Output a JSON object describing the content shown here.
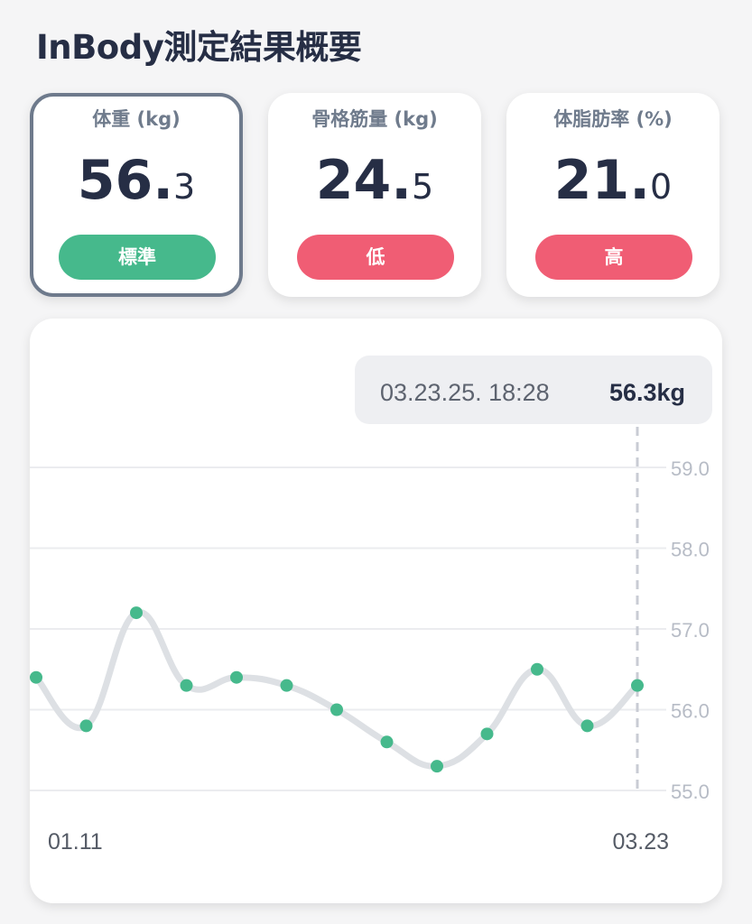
{
  "page": {
    "title": "InBody測定結果概要"
  },
  "cards": [
    {
      "label": "体重 (kg)",
      "int": "56.",
      "dec": "3",
      "status": "標準",
      "status_color": "#46b98c",
      "selected": true
    },
    {
      "label": "骨格筋量 (kg)",
      "int": "24.",
      "dec": "5",
      "status": "低",
      "status_color": "#f05d74",
      "selected": false
    },
    {
      "label": "体脂肪率 (%)",
      "int": "21.",
      "dec": "0",
      "status": "高",
      "status_color": "#f05d74",
      "selected": false
    }
  ],
  "chart": {
    "tooltip": {
      "date": "03.23.25. 18:28",
      "value": "56.3kg"
    }
  },
  "chart_data": {
    "type": "line",
    "ylim": [
      55.0,
      59.0
    ],
    "y_ticks": [
      "59.0",
      "58.0",
      "57.0",
      "56.0",
      "55.0"
    ],
    "x_labels": [
      "01.11",
      "03.23"
    ],
    "values": [
      56.4,
      55.8,
      57.2,
      56.3,
      56.4,
      56.3,
      56.0,
      55.6,
      55.3,
      55.7,
      56.5,
      55.8,
      56.3
    ],
    "line_color": "#dde0e4",
    "point_color": "#46b98c",
    "highlight_index": 12
  }
}
